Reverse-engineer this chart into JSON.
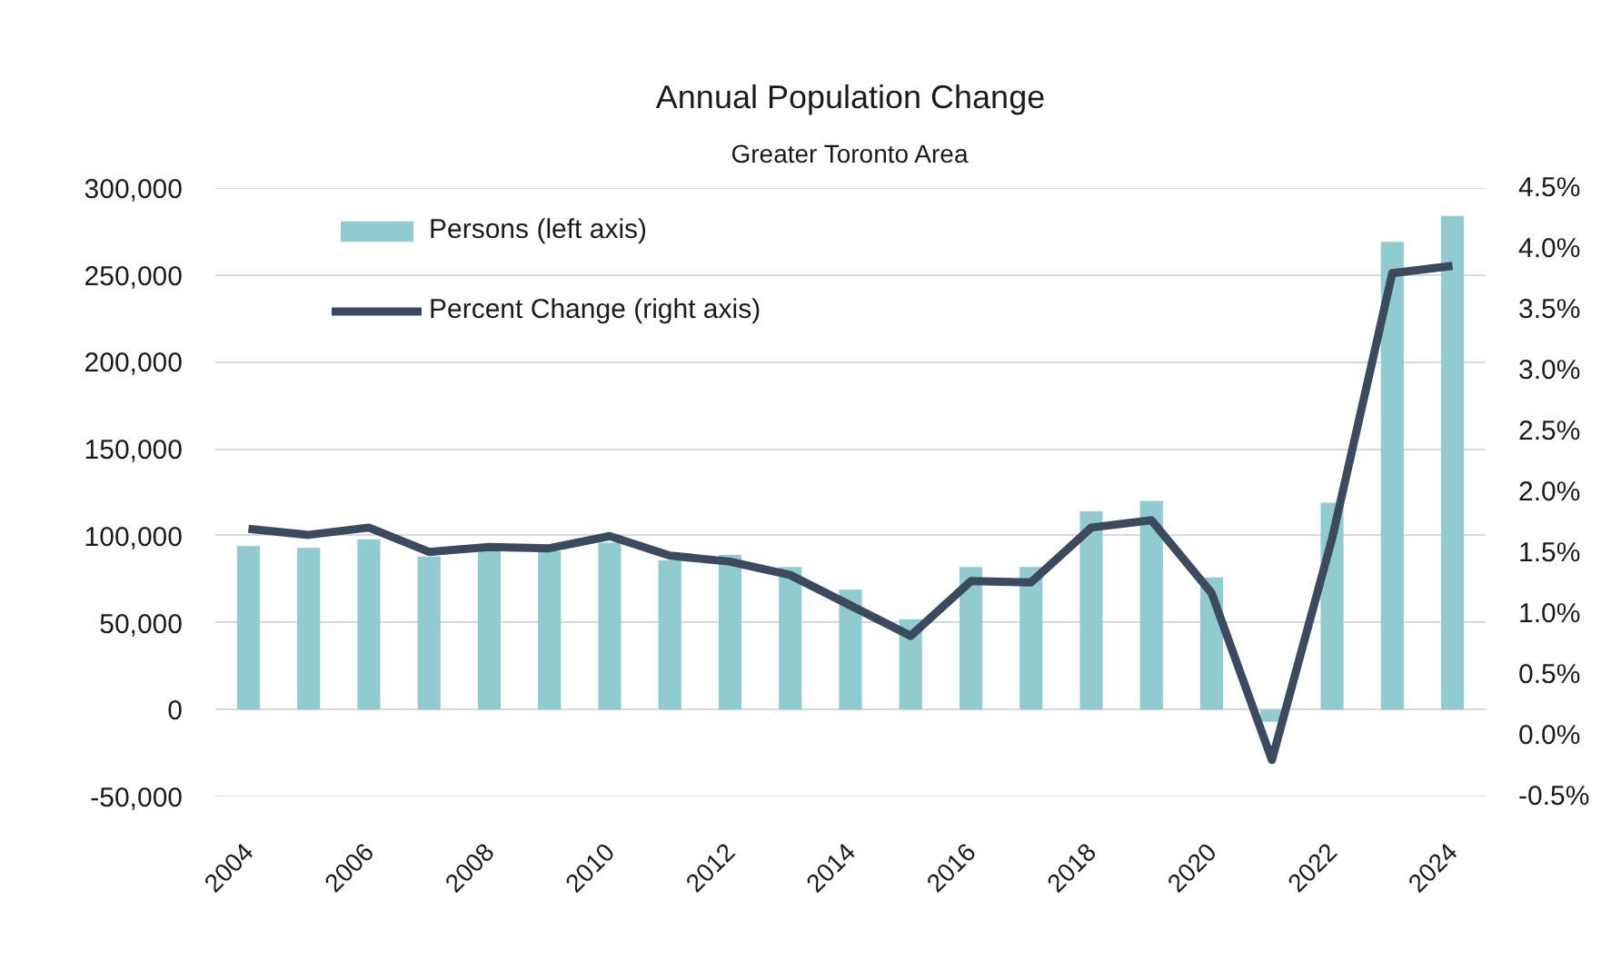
{
  "chart_data": {
    "type": "bar",
    "title": "Annual Population Change",
    "subtitle": "Greater Toronto Area",
    "categories": [
      "2004",
      null,
      "2006",
      null,
      "2008",
      null,
      "2010",
      null,
      "2012",
      null,
      "2014",
      null,
      "2016",
      null,
      "2018",
      null,
      "2020",
      null,
      "2022",
      null,
      "2024"
    ],
    "series": [
      {
        "name": "Persons (left axis)",
        "color": "#8fcbcf",
        "values": [
          94000,
          93000,
          98000,
          88000,
          91000,
          91000,
          96000,
          86000,
          89000,
          82000,
          69000,
          52000,
          82000,
          82000,
          114000,
          120000,
          76000,
          -7000,
          119000,
          269000,
          284000
        ]
      },
      {
        "name": "Percent Change (right axis)",
        "type": "line",
        "axis": "y2",
        "color": "#3b4a5e",
        "values": [
          1.7,
          1.65,
          1.71,
          1.51,
          1.55,
          1.54,
          1.64,
          1.48,
          1.43,
          1.32,
          1.07,
          0.82,
          1.27,
          1.26,
          1.71,
          1.77,
          1.17,
          -0.2,
          1.62,
          3.8,
          3.86
        ]
      }
    ],
    "ylim": [
      -50000,
      300000
    ],
    "yticks": [
      {
        "value": -50000,
        "label": "-50,000"
      },
      0,
      {
        "value": 50000,
        "label": "50,000"
      },
      {
        "value": 100000,
        "label": "100,000"
      },
      {
        "value": 150000,
        "label": "150,000"
      },
      {
        "value": 200000,
        "label": "200,000"
      },
      {
        "value": 250000,
        "label": "250,000"
      },
      {
        "value": 300000,
        "label": "300,000"
      }
    ],
    "y2lim": [
      -0.5,
      4.5
    ],
    "y2ticks": [
      {
        "value": -0.5,
        "label": "-0.5%"
      },
      {
        "value": 0,
        "label": "0.0%"
      },
      {
        "value": 0.5,
        "label": "0.5%"
      },
      {
        "value": 1,
        "label": "1.0%"
      },
      {
        "value": 1.5,
        "label": "1.5%"
      },
      {
        "value": 2,
        "label": "2.0%"
      },
      {
        "value": 2.5,
        "label": "2.5%"
      },
      {
        "value": 3,
        "label": "3.0%"
      },
      {
        "value": 3.5,
        "label": "3.5%"
      },
      {
        "value": 4,
        "label": "4.0%"
      },
      {
        "value": 4.5,
        "label": "4.5%"
      }
    ],
    "grid": "y",
    "legend": "top left",
    "line_style": "solid"
  }
}
